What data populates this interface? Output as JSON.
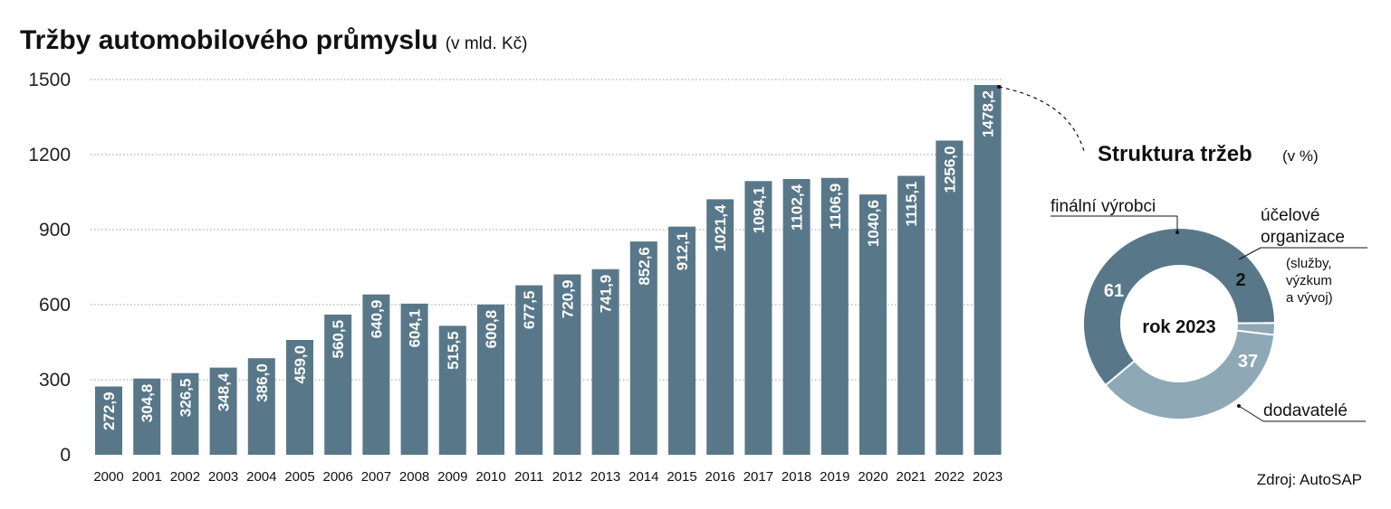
{
  "colors": {
    "bar": "#58788a",
    "pie_dark": "#58788a",
    "pie_light": "#8ea8b6",
    "grid": "#9a9a9a"
  },
  "chart_data": [
    {
      "type": "bar",
      "title": "Tržby automobilového průmyslu",
      "title_unit": "(v mld. Kč)",
      "categories": [
        "2000",
        "2001",
        "2002",
        "2003",
        "2004",
        "2005",
        "2006",
        "2007",
        "2008",
        "2009",
        "2010",
        "2011",
        "2012",
        "2013",
        "2014",
        "2015",
        "2016",
        "2017",
        "2018",
        "2019",
        "2020",
        "2021",
        "2022",
        "2023"
      ],
      "values": [
        272.9,
        304.8,
        326.5,
        348.4,
        386.0,
        459.0,
        560.5,
        640.9,
        604.1,
        515.5,
        600.8,
        677.5,
        720.9,
        741.9,
        852.6,
        912.1,
        1021.4,
        1094.1,
        1102.4,
        1106.9,
        1040.6,
        1115.1,
        1256.0,
        1478.2
      ],
      "value_labels": [
        "272,9",
        "304,8",
        "326,5",
        "348,4",
        "386,0",
        "459,0",
        "560,5",
        "640,9",
        "604,1",
        "515,5",
        "600,8",
        "677,5",
        "720,9",
        "741,9",
        "852,6",
        "912,1",
        "1021,4",
        "1094,1",
        "1102,4",
        "1106,9",
        "1040,6",
        "1115,1",
        "1256,0",
        "1478,2"
      ],
      "yticks": [
        "0",
        "300",
        "600",
        "900",
        "1200",
        "1500"
      ],
      "ylim": [
        0,
        1500
      ],
      "grid": true,
      "grid_style": "dotted horizontal"
    },
    {
      "type": "pie",
      "title": "Struktura tržeb",
      "title_unit": "(v %)",
      "center_label": "rok 2023",
      "slices": [
        {
          "name": "finální výrobci",
          "value": 61,
          "label": "61"
        },
        {
          "name": "účelové organizace",
          "value": 2,
          "label": "2",
          "note": [
            "(služby,",
            "výzkum",
            "a vývoj)"
          ]
        },
        {
          "name": "dodavatelé",
          "value": 37,
          "label": "37"
        }
      ],
      "category_labels": {
        "a": "finální výrobci",
        "b1": "účelové",
        "b2": "organizace",
        "c": "dodavatelé"
      },
      "note_lines": [
        "(služby,",
        "výzkum",
        "a vývoj)"
      ]
    }
  ],
  "source": "Zdroj: AutoSAP"
}
